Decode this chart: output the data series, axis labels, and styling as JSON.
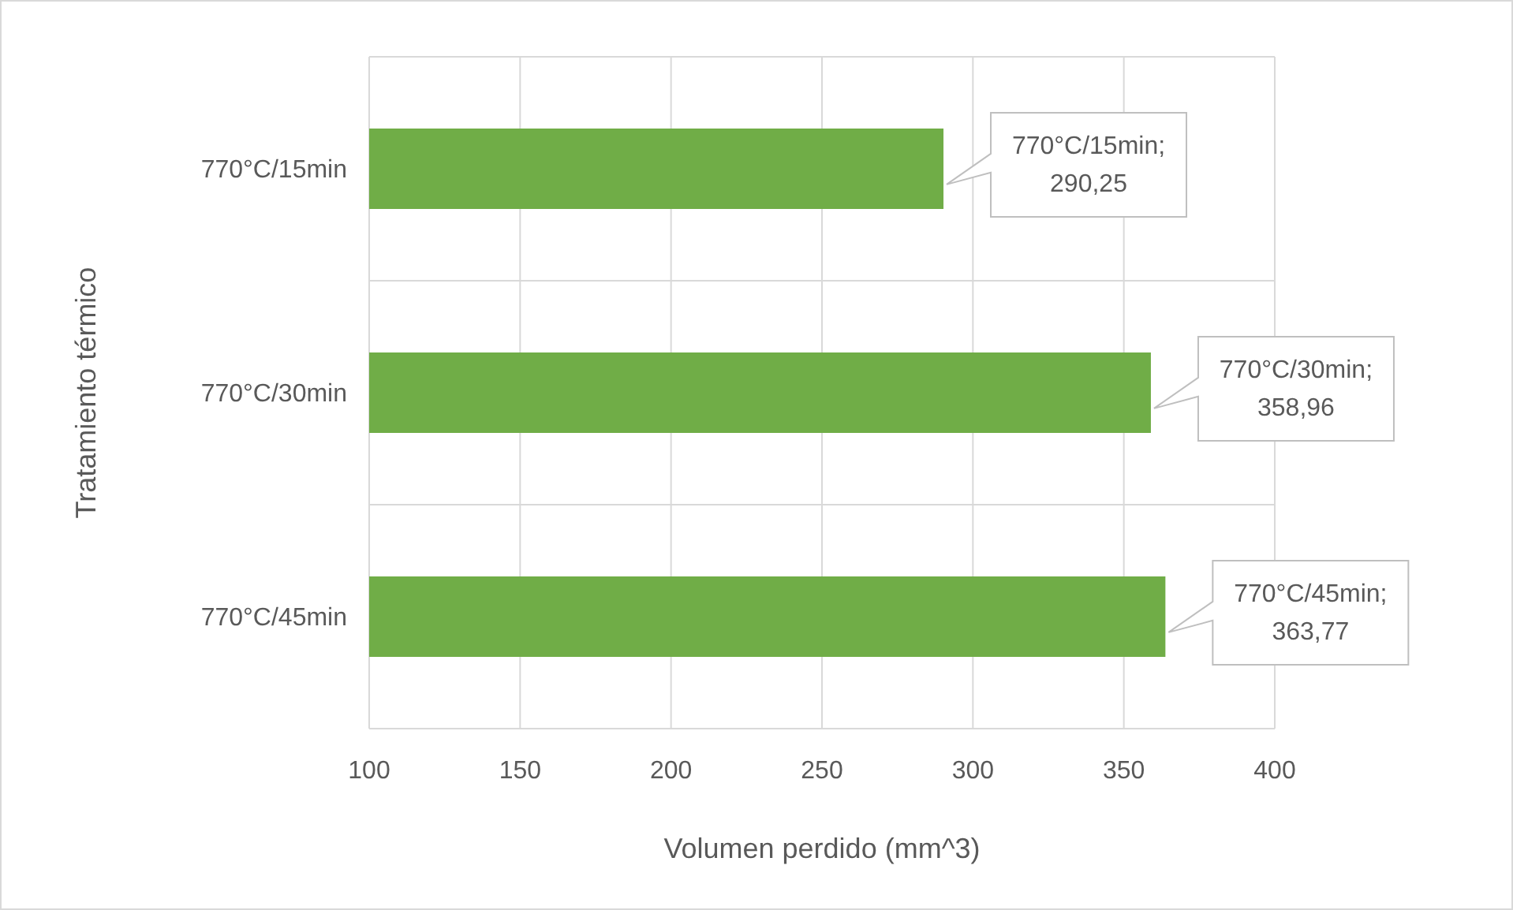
{
  "chart_data": {
    "type": "bar",
    "orientation": "horizontal",
    "xlabel": "Volumen perdido (mm^3)",
    "ylabel": "Tratamiento térmico",
    "categories": [
      "770°C/15min",
      "770°C/30min",
      "770°C/45min"
    ],
    "values": [
      290.25,
      358.96,
      363.77
    ],
    "value_labels": [
      "770°C/15min; 290,25",
      "770°C/30min; 358,96",
      "770°C/45min; 363,77"
    ],
    "color": "#70ad47",
    "xlim": [
      100,
      400
    ],
    "xticks": [
      100,
      150,
      200,
      250,
      300,
      350,
      400
    ],
    "grid": true,
    "legend": false
  }
}
